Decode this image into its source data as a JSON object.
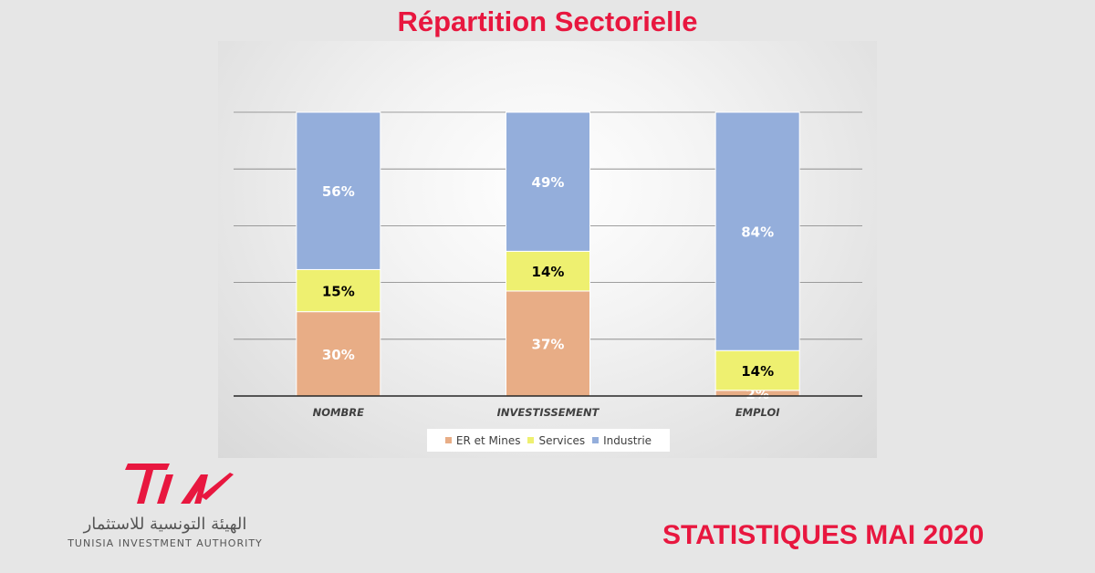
{
  "page": {
    "title": "Répartition Sectorielle",
    "footer": "STATISTIQUES MAI 2020"
  },
  "logo": {
    "mark": "TIA",
    "arabic": "الهيئة التونسية للاستثمار",
    "english": "TUNISIA INVESTMENT AUTHORITY",
    "color": "#e8173f"
  },
  "chart_data": {
    "type": "bar",
    "stacked": true,
    "percent": true,
    "categories": [
      "NOMBRE",
      "INVESTISSEMENT",
      "EMPLOI"
    ],
    "series": [
      {
        "name": "ER et Mines",
        "values": [
          30,
          37,
          2
        ],
        "color": "#e8ad86",
        "label_color": "#ffffff"
      },
      {
        "name": "Services",
        "values": [
          15,
          14,
          14
        ],
        "color": "#eef070",
        "label_color": "#000000"
      },
      {
        "name": "Industrie",
        "values": [
          56,
          49,
          84
        ],
        "color": "#94aedb",
        "label_color": "#ffffff"
      }
    ],
    "data_labels": [
      [
        "30%",
        "37%",
        "2%"
      ],
      [
        "15%",
        "14%",
        "14%"
      ],
      [
        "56%",
        "49%",
        "84%"
      ]
    ],
    "ylim": [
      0,
      100
    ],
    "grid": true,
    "legend_position": "bottom"
  }
}
